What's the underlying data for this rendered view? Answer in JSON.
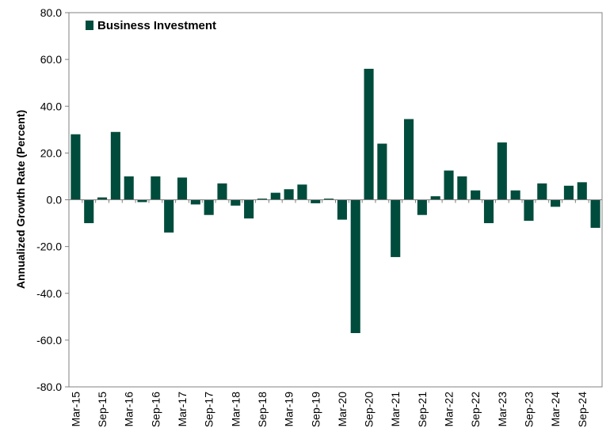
{
  "chart_data": {
    "type": "bar",
    "title": "",
    "xlabel": "",
    "ylabel": "Annualized Growth Rate (Percent)",
    "ylim": [
      -80,
      80
    ],
    "yticks": [
      "80.0",
      "60.0",
      "40.0",
      "20.0",
      "0.0",
      "-20.0",
      "-40.0",
      "-60.0",
      "-80.0"
    ],
    "ytick_values": [
      80,
      60,
      40,
      20,
      0,
      -20,
      -40,
      -60,
      -80
    ],
    "grid": false,
    "legend_position": "top-left",
    "colors": {
      "bar": "#004c3c",
      "axis": "#808080"
    },
    "categories": [
      "Mar-15",
      "Jun-15",
      "Sep-15",
      "Dec-15",
      "Mar-16",
      "Jun-16",
      "Sep-16",
      "Dec-16",
      "Mar-17",
      "Jun-17",
      "Sep-17",
      "Dec-17",
      "Mar-18",
      "Jun-18",
      "Sep-18",
      "Dec-18",
      "Mar-19",
      "Jun-19",
      "Sep-19",
      "Dec-19",
      "Mar-20",
      "Jun-20",
      "Sep-20",
      "Dec-20",
      "Mar-21",
      "Jun-21",
      "Sep-21",
      "Dec-21",
      "Mar-22",
      "Jun-22",
      "Sep-22",
      "Dec-22",
      "Mar-23",
      "Jun-23",
      "Sep-23",
      "Dec-23",
      "Mar-24",
      "Jun-24",
      "Sep-24",
      "Dec-24"
    ],
    "shown_tick_labels": [
      "Mar-15",
      "Sep-15",
      "Mar-16",
      "Sep-16",
      "Mar-17",
      "Sep-17",
      "Mar-18",
      "Sep-18",
      "Mar-19",
      "Sep-19",
      "Mar-20",
      "Sep-20",
      "Mar-21",
      "Sep-21",
      "Mar-22",
      "Sep-22",
      "Mar-23",
      "Sep-23",
      "Mar-24",
      "Sep-24"
    ],
    "series": [
      {
        "name": "Business Investment",
        "values": [
          28.0,
          -10.0,
          1.0,
          29.0,
          10.0,
          -1.0,
          10.0,
          -14.0,
          9.5,
          -2.0,
          -6.5,
          7.0,
          -2.5,
          -8.0,
          0.5,
          3.0,
          4.5,
          6.5,
          -1.5,
          0.5,
          -8.5,
          -57.0,
          56.0,
          24.0,
          -24.5,
          34.5,
          -6.5,
          1.5,
          12.5,
          10.0,
          4.0,
          -10.0,
          24.5,
          4.0,
          -9.0,
          7.0,
          -3.0,
          6.0,
          7.5,
          -12.0
        ]
      }
    ]
  }
}
